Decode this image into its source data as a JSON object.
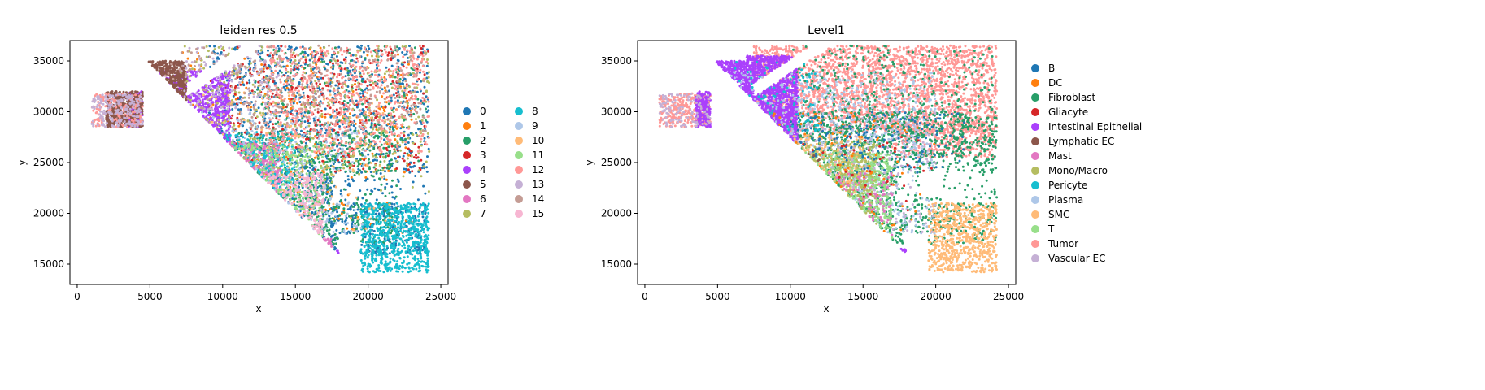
{
  "chart_data": [
    {
      "type": "scatter",
      "title": "leiden res 0.5",
      "xlabel": "x",
      "ylabel": "y",
      "xlim": [
        -500,
        25500
      ],
      "ylim": [
        13000,
        37000
      ],
      "xticks": [
        0,
        5000,
        10000,
        15000,
        20000,
        25000
      ],
      "yticks": [
        15000,
        20000,
        25000,
        30000,
        35000
      ],
      "legend_position": "right",
      "legend_columns": 2,
      "series": [
        {
          "name": "0",
          "color": "#1f77b4"
        },
        {
          "name": "1",
          "color": "#ff7f0e"
        },
        {
          "name": "2",
          "color": "#279e68"
        },
        {
          "name": "3",
          "color": "#d62728"
        },
        {
          "name": "4",
          "color": "#aa40fc"
        },
        {
          "name": "5",
          "color": "#8c564b"
        },
        {
          "name": "6",
          "color": "#e377c2"
        },
        {
          "name": "7",
          "color": "#b5bd61"
        },
        {
          "name": "8",
          "color": "#17becf"
        },
        {
          "name": "9",
          "color": "#aec7e8"
        },
        {
          "name": "10",
          "color": "#ffbb78"
        },
        {
          "name": "11",
          "color": "#98df8a"
        },
        {
          "name": "12",
          "color": "#ff9896"
        },
        {
          "name": "13",
          "color": "#c5b0d5"
        },
        {
          "name": "14",
          "color": "#c49c94"
        },
        {
          "name": "15",
          "color": "#f7b6d2"
        }
      ],
      "regions": [
        {
          "series": "0",
          "x": [
            9000,
            24200
          ],
          "y": [
            24000,
            36500
          ],
          "density": 900
        },
        {
          "series": "0",
          "x": [
            13000,
            24000
          ],
          "y": [
            16000,
            24000
          ],
          "density": 500
        },
        {
          "series": "1",
          "x": [
            7000,
            23000
          ],
          "y": [
            18000,
            36500
          ],
          "density": 250
        },
        {
          "series": "2",
          "x": [
            9000,
            22000
          ],
          "y": [
            17000,
            28000
          ],
          "density": 550
        },
        {
          "series": "2",
          "x": [
            12000,
            24000
          ],
          "y": [
            25000,
            36500
          ],
          "density": 200
        },
        {
          "series": "3",
          "x": [
            9000,
            24200
          ],
          "y": [
            24000,
            36500
          ],
          "density": 350
        },
        {
          "series": "4",
          "x": [
            3500,
            10500
          ],
          "y": [
            17000,
            34000
          ],
          "density": 700
        },
        {
          "series": "4",
          "x": [
            11000,
            18000
          ],
          "y": [
            14000,
            16500
          ],
          "density": 100
        },
        {
          "series": "5",
          "x": [
            2000,
            7500
          ],
          "y": [
            19500,
            35000
          ],
          "density": 900
        },
        {
          "series": "6",
          "x": [
            9000,
            14000
          ],
          "y": [
            21000,
            27000
          ],
          "density": 300
        },
        {
          "series": "6",
          "x": [
            12000,
            17500
          ],
          "y": [
            15000,
            17500
          ],
          "density": 150
        },
        {
          "series": "7",
          "x": [
            6000,
            24200
          ],
          "y": [
            22000,
            36500
          ],
          "density": 450
        },
        {
          "series": "8",
          "x": [
            19500,
            24200
          ],
          "y": [
            14200,
            21000
          ],
          "density": 700
        },
        {
          "series": "8",
          "x": [
            8000,
            15000
          ],
          "y": [
            21000,
            28000
          ],
          "density": 200
        },
        {
          "series": "9",
          "x": [
            7000,
            20000
          ],
          "y": [
            18000,
            30000
          ],
          "density": 250
        },
        {
          "series": "10",
          "x": [
            8000,
            22000
          ],
          "y": [
            18000,
            32000
          ],
          "density": 150
        },
        {
          "series": "11",
          "x": [
            8000,
            17000
          ],
          "y": [
            17000,
            27000
          ],
          "density": 200
        },
        {
          "series": "12",
          "x": [
            13000,
            24200
          ],
          "y": [
            26000,
            36500
          ],
          "density": 600
        },
        {
          "series": "12",
          "x": [
            1000,
            4500
          ],
          "y": [
            28500,
            31800
          ],
          "density": 150
        },
        {
          "series": "13",
          "x": [
            1000,
            4500
          ],
          "y": [
            28500,
            31800
          ],
          "density": 200
        },
        {
          "series": "13",
          "x": [
            7000,
            14000
          ],
          "y": [
            30000,
            36500
          ],
          "density": 150
        },
        {
          "series": "14",
          "x": [
            6000,
            24000
          ],
          "y": [
            28000,
            36500
          ],
          "density": 350
        },
        {
          "series": "15",
          "x": [
            7000,
            17000
          ],
          "y": [
            16000,
            24000
          ],
          "density": 200
        }
      ]
    },
    {
      "type": "scatter",
      "title": "Level1",
      "xlabel": "x",
      "ylabel": "y",
      "xlim": [
        -500,
        25500
      ],
      "ylim": [
        13000,
        37000
      ],
      "xticks": [
        0,
        5000,
        10000,
        15000,
        20000,
        25000
      ],
      "yticks": [
        15000,
        20000,
        25000,
        30000,
        35000
      ],
      "legend_position": "right",
      "legend_columns": 1,
      "series": [
        {
          "name": "B",
          "color": "#1f77b4"
        },
        {
          "name": "DC",
          "color": "#ff7f0e"
        },
        {
          "name": "Fibroblast",
          "color": "#279e68"
        },
        {
          "name": "Gliacyte",
          "color": "#d62728"
        },
        {
          "name": "Intestinal Epithelial",
          "color": "#aa40fc"
        },
        {
          "name": "Lymphatic EC",
          "color": "#8c564b"
        },
        {
          "name": "Mast",
          "color": "#e377c2"
        },
        {
          "name": "Mono/Macro",
          "color": "#b5bd61"
        },
        {
          "name": "Pericyte",
          "color": "#17becf"
        },
        {
          "name": "Plasma",
          "color": "#aec7e8"
        },
        {
          "name": "SMC",
          "color": "#ffbb78"
        },
        {
          "name": "T",
          "color": "#98df8a"
        },
        {
          "name": "Tumor",
          "color": "#ff9896"
        },
        {
          "name": "Vascular EC",
          "color": "#c5b0d5"
        }
      ],
      "regions": [
        {
          "series": "Tumor",
          "x": [
            7500,
            24200
          ],
          "y": [
            28000,
            36500
          ],
          "density": 2600
        },
        {
          "series": "Tumor",
          "x": [
            17000,
            24200
          ],
          "y": [
            25500,
            29000
          ],
          "density": 400
        },
        {
          "series": "Tumor",
          "x": [
            1000,
            4500
          ],
          "y": [
            28500,
            31800
          ],
          "density": 300
        },
        {
          "series": "Tumor",
          "x": [
            7000,
            9000
          ],
          "y": [
            17000,
            18500
          ],
          "density": 40
        },
        {
          "series": "Fibroblast",
          "x": [
            9000,
            24200
          ],
          "y": [
            17000,
            30000
          ],
          "density": 1200
        },
        {
          "series": "Fibroblast",
          "x": [
            10000,
            24000
          ],
          "y": [
            27000,
            36500
          ],
          "density": 400
        },
        {
          "series": "Intestinal Epithelial",
          "x": [
            3500,
            10500
          ],
          "y": [
            17500,
            35500
          ],
          "density": 1600
        },
        {
          "series": "Intestinal Epithelial",
          "x": [
            11000,
            18000
          ],
          "y": [
            14000,
            16500
          ],
          "density": 150
        },
        {
          "series": "Plasma",
          "x": [
            5000,
            20000
          ],
          "y": [
            18000,
            34000
          ],
          "density": 600
        },
        {
          "series": "T",
          "x": [
            8000,
            17000
          ],
          "y": [
            17000,
            26000
          ],
          "density": 500
        },
        {
          "series": "Mono/Macro",
          "x": [
            8000,
            16000
          ],
          "y": [
            18000,
            27000
          ],
          "density": 250
        },
        {
          "series": "SMC",
          "x": [
            19500,
            24200
          ],
          "y": [
            14200,
            21000
          ],
          "density": 700
        },
        {
          "series": "SMC",
          "x": [
            9000,
            15000
          ],
          "y": [
            22000,
            28000
          ],
          "density": 120
        },
        {
          "series": "Vascular EC",
          "x": [
            1000,
            4500
          ],
          "y": [
            28500,
            31800
          ],
          "density": 120
        },
        {
          "series": "Vascular EC",
          "x": [
            8000,
            20000
          ],
          "y": [
            18000,
            30000
          ],
          "density": 180
        },
        {
          "series": "B",
          "x": [
            10000,
            22000
          ],
          "y": [
            24000,
            30000
          ],
          "density": 150
        },
        {
          "series": "DC",
          "x": [
            8000,
            20000
          ],
          "y": [
            18000,
            30000
          ],
          "density": 80
        },
        {
          "series": "Mast",
          "x": [
            8000,
            17000
          ],
          "y": [
            16000,
            24000
          ],
          "density": 80
        },
        {
          "series": "Pericyte",
          "x": [
            6000,
            12000
          ],
          "y": [
            28000,
            35000
          ],
          "density": 80
        },
        {
          "series": "Lymphatic EC",
          "x": [
            6000,
            12000
          ],
          "y": [
            18000,
            26000
          ],
          "density": 60
        },
        {
          "series": "Gliacyte",
          "x": [
            10000,
            20000
          ],
          "y": [
            20000,
            28000
          ],
          "density": 40
        }
      ]
    }
  ]
}
